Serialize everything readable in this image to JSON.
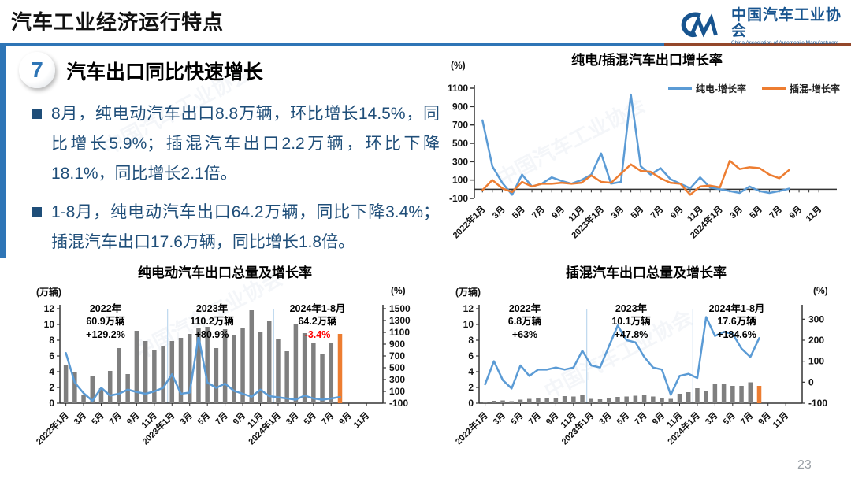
{
  "header": {
    "title": "汽车工业经济运行特点",
    "logo": {
      "mark": "CM",
      "name_cn": "中国汽车工业协会",
      "name_en": "China Association of Automobile Manufacturers"
    }
  },
  "section": {
    "number": "7",
    "title": "汽车出口同比快速增长"
  },
  "bullets": [
    "8月，纯电动汽车出口8.8万辆，环比增长14.5%，同比增长5.9%；插混汽车出口2.2万辆，环比下降18.1%，同比增长2.1倍。",
    "1-8月，纯电动汽车出口64.2万辆，同比下降3.4%；插混汽车出口17.6万辆，同比增长1.8倍。"
  ],
  "watermark_text": "中国汽车工业协会",
  "page_number": "23",
  "colors": {
    "blue_line": "#5B9BD5",
    "orange_line": "#ED7D31",
    "gray_bar": "#7F7F7F",
    "accent_blue": "#2E75B6",
    "navy_text": "#1F4E79",
    "red": "#FF0000"
  },
  "chart_data": [
    {
      "id": "growth",
      "type": "line",
      "title": "纯电/插混汽车出口增长率",
      "unit_left": "(%)",
      "ylim": [
        -100,
        1100
      ],
      "y_ticks": [
        -100,
        100,
        300,
        500,
        700,
        900,
        1100
      ],
      "x_range": "2022年1月–2024年11月",
      "x_tick_labels": [
        "2022年1月",
        "3月",
        "5月",
        "7月",
        "9月",
        "11月",
        "2023年1月",
        "3月",
        "5月",
        "7月",
        "9月",
        "11月",
        "2024年1月",
        "3月",
        "5月",
        "7月",
        "9月",
        "11月"
      ],
      "legend_position": "top-right",
      "series": [
        {
          "name": "纯电-增长率",
          "color": "#5B9BD5",
          "values": [
            750,
            250,
            70,
            -60,
            160,
            30,
            60,
            130,
            90,
            60,
            100,
            160,
            390,
            60,
            80,
            1030,
            250,
            160,
            230,
            110,
            60,
            10,
            130,
            20,
            0,
            -20,
            -40,
            30,
            -20,
            -40,
            -20,
            6
          ]
        },
        {
          "name": "插混-增长率",
          "color": "#ED7D31",
          "values": [
            -10,
            100,
            10,
            -30,
            80,
            30,
            60,
            60,
            70,
            60,
            70,
            150,
            80,
            70,
            170,
            270,
            200,
            190,
            120,
            70,
            60,
            -60,
            30,
            40,
            20,
            310,
            220,
            240,
            230,
            160,
            120,
            210
          ]
        }
      ]
    },
    {
      "id": "bev",
      "type": "bar+line",
      "title": "纯电动汽车出口总量及增长率",
      "unit_left": "(万辆)",
      "unit_right": "(%)",
      "ylim_left": [
        0,
        12
      ],
      "y_ticks_left": [
        0,
        2,
        4,
        6,
        8,
        10,
        12
      ],
      "ylim_right": [
        -100,
        1500
      ],
      "y_ticks_right": [
        -100,
        100,
        300,
        500,
        700,
        900,
        1100,
        1300,
        1500
      ],
      "x_tick_labels": [
        "2022年1月",
        "3月",
        "5月",
        "7月",
        "9月",
        "11月",
        "2023年1月",
        "3月",
        "5月",
        "7月",
        "9月",
        "11月",
        "2024年1月",
        "3月",
        "5月",
        "7月",
        "9月",
        "11月"
      ],
      "bars": {
        "name": "出口量(万辆)",
        "color": "#7F7F7F",
        "last_bar_color": "#ED7D31",
        "values": [
          4.8,
          4.0,
          1.0,
          3.4,
          1.9,
          4.1,
          7.0,
          3.7,
          9.2,
          7.9,
          6.7,
          7.2,
          7.9,
          8.3,
          8.8,
          9.6,
          9.7,
          7.0,
          9.4,
          8.7,
          9.6,
          11.8,
          9.0,
          10.4,
          8.2,
          6.6,
          10.0,
          8.9,
          7.7,
          6.3,
          7.7,
          8.8
        ]
      },
      "line": {
        "name": "增长率(%)",
        "color": "#5B9BD5",
        "values": [
          750,
          250,
          70,
          -60,
          160,
          30,
          60,
          130,
          90,
          60,
          100,
          160,
          390,
          60,
          80,
          1030,
          250,
          160,
          230,
          110,
          60,
          10,
          130,
          20,
          0,
          -20,
          -40,
          30,
          -20,
          -40,
          -20,
          6
        ]
      },
      "annotations": [
        {
          "lines": [
            "2022年",
            "60.9万辆",
            "+129.2%"
          ],
          "highlight": null
        },
        {
          "lines": [
            "2023年",
            "110.2万辆",
            "+80.9%"
          ],
          "highlight": null
        },
        {
          "lines": [
            "2024年1-8月",
            "64.2万辆",
            "-3.4%"
          ],
          "highlight": "#FF0000"
        }
      ]
    },
    {
      "id": "phev",
      "type": "bar+line",
      "title": "插混汽车出口总量及增长率",
      "unit_left": "(万辆)",
      "unit_right": "(%)",
      "ylim_left": [
        0,
        12
      ],
      "y_ticks_left": [
        0,
        2,
        4,
        6,
        8,
        10,
        12
      ],
      "ylim_right": [
        -100,
        350
      ],
      "y_ticks_right": [
        -100,
        0,
        100,
        200,
        300
      ],
      "x_tick_labels": [
        "2022年1月",
        "3月",
        "5月",
        "7月",
        "9月",
        "11月",
        "2023年1月",
        "3月",
        "5月",
        "7月",
        "9月",
        "11月",
        "2024年1月",
        "3月",
        "5月",
        "7月",
        "9月",
        "11月"
      ],
      "bars": {
        "name": "出口量(万辆)",
        "color": "#7F7F7F",
        "last_bar_color": "#ED7D31",
        "values": [
          0.15,
          0.3,
          0.35,
          0.25,
          0.45,
          0.55,
          0.65,
          0.6,
          0.7,
          0.9,
          0.85,
          1.05,
          0.55,
          0.5,
          0.7,
          0.8,
          0.85,
          0.95,
          1.05,
          0.85,
          0.7,
          0.55,
          1.2,
          1.4,
          1.9,
          1.6,
          2.4,
          2.45,
          2.2,
          2.2,
          2.65,
          2.2
        ]
      },
      "line": {
        "name": "增长率(%)",
        "color": "#5B9BD5",
        "values": [
          -10,
          100,
          10,
          -30,
          80,
          30,
          60,
          60,
          70,
          60,
          70,
          150,
          80,
          70,
          170,
          270,
          200,
          190,
          120,
          70,
          60,
          -60,
          30,
          40,
          20,
          310,
          220,
          240,
          230,
          160,
          120,
          210
        ]
      },
      "annotations": [
        {
          "lines": [
            "2022年",
            "6.8万辆",
            "+63%"
          ],
          "highlight": null
        },
        {
          "lines": [
            "2023年",
            "10.1万辆",
            "+47.8%"
          ],
          "highlight": null
        },
        {
          "lines": [
            "2024年1-8月",
            "17.6万辆",
            "+184.6%"
          ],
          "highlight": null
        }
      ]
    }
  ]
}
